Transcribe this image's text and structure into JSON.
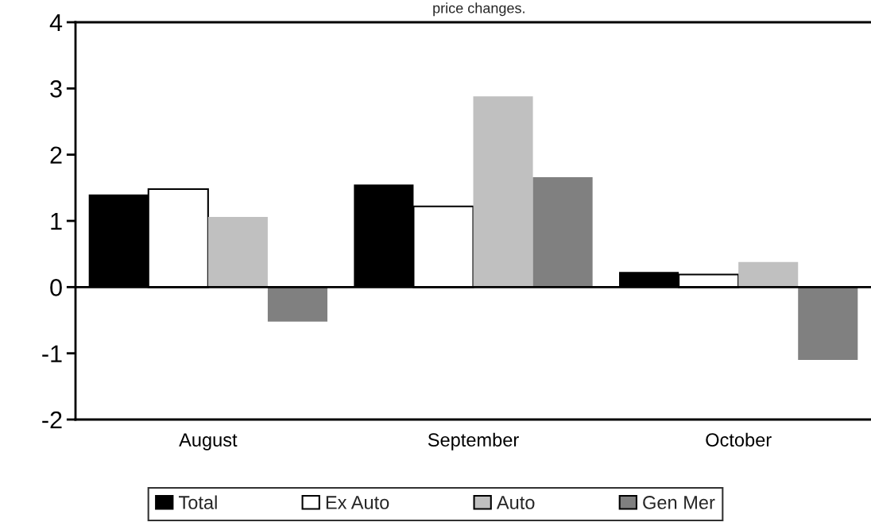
{
  "chart_data": {
    "type": "bar",
    "title": "price changes.",
    "categories": [
      "August",
      "September",
      "October"
    ],
    "series": [
      {
        "name": "Total",
        "color": "#000000",
        "values": [
          1.4,
          1.55,
          0.23
        ]
      },
      {
        "name": "Ex Auto",
        "color": "#ffffff",
        "values": [
          1.48,
          1.22,
          0.19
        ]
      },
      {
        "name": "Auto",
        "color": "#c0c0c0",
        "values": [
          1.06,
          2.88,
          0.38
        ]
      },
      {
        "name": "Gen Mer",
        "color": "#808080",
        "values": [
          -0.52,
          1.66,
          -1.1
        ]
      }
    ],
    "ylim": [
      -2,
      4
    ],
    "yticks": [
      -2,
      -1,
      0,
      1,
      2,
      3,
      4
    ],
    "ref_lines": [
      {
        "axis": "y",
        "value": 0,
        "color": "#000000"
      }
    ],
    "grid": false,
    "legend": "bottom"
  }
}
